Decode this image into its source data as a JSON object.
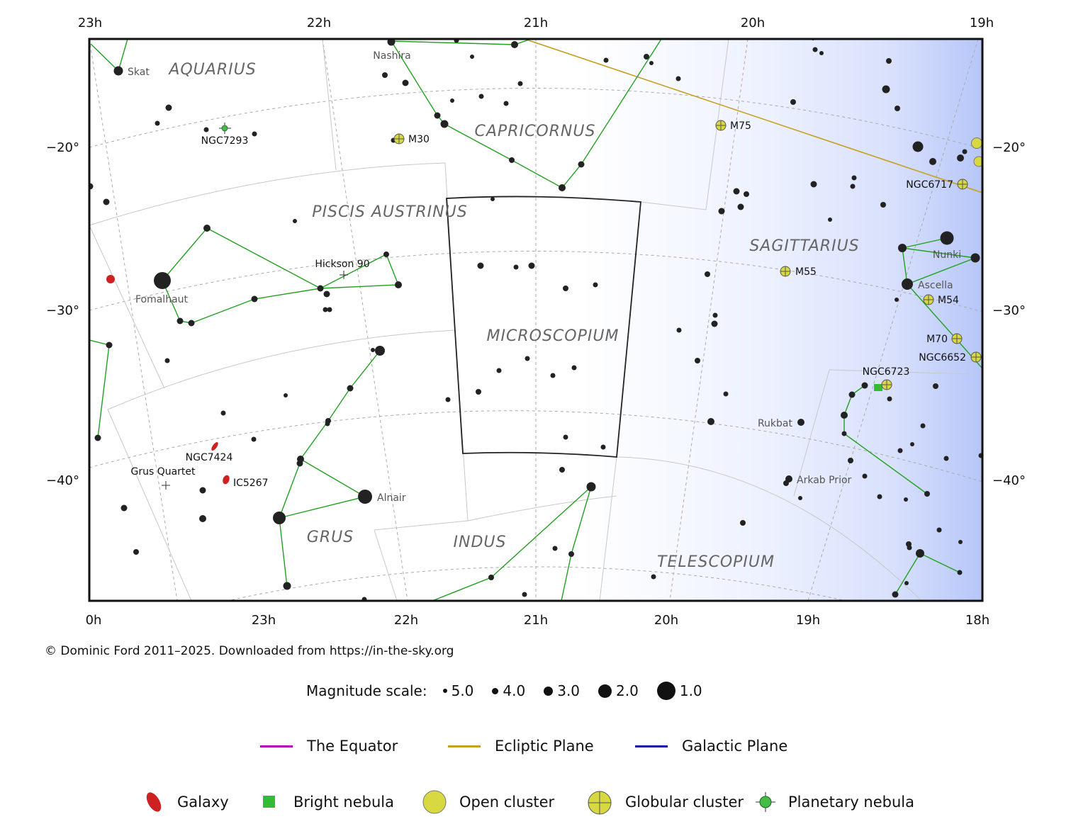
{
  "ra_top_labels": [
    "23h",
    "22h",
    "21h",
    "20h",
    "19h"
  ],
  "ra_bottom_labels": [
    "0h",
    "23h",
    "22h",
    "21h",
    "20h",
    "19h",
    "18h"
  ],
  "dec_labels": [
    "−20°",
    "−30°",
    "−40°"
  ],
  "constellations": [
    "AQUARIUS",
    "CAPRICORNUS",
    "PISCIS AUSTRINUS",
    "SAGITTARIUS",
    "MICROSCOPIUM",
    "GRUS",
    "INDUS",
    "TELESCOPIUM"
  ],
  "star_names": [
    "Skat",
    "Nashira",
    "Fomalhaut",
    "Nunki",
    "Ascella",
    "Rukbat",
    "Arkab Prior",
    "Alnair"
  ],
  "deep_sky": {
    "globular": [
      "M30",
      "M75",
      "M55",
      "M54",
      "M70",
      "NGC6652",
      "NGC6717",
      "NGC6723"
    ],
    "planetary": [
      "NGC7293"
    ],
    "galaxies": [
      "NGC7424",
      "IC5267"
    ],
    "groups": [
      "Hickson 90",
      "Grus Quartet"
    ]
  },
  "copyright": "© Dominic Ford 2011–2025. Downloaded from https://in-the-sky.org",
  "magnitude_scale": {
    "title": "Magnitude scale:",
    "items": [
      "5.0",
      "4.0",
      "3.0",
      "2.0",
      "1.0"
    ]
  },
  "line_legend": [
    {
      "label": "The Equator",
      "color": "#b000b0"
    },
    {
      "label": "Ecliptic Plane",
      "color": "#c8a020"
    },
    {
      "label": "Galactic Plane",
      "color": "#1010a0"
    }
  ],
  "object_legend": [
    "Galaxy",
    "Bright nebula",
    "Open cluster",
    "Globular cluster",
    "Planetary nebula"
  ],
  "colors": {
    "constellation_line": "#22a022",
    "ecliptic": "#c8a020",
    "galaxy": "#cc2222",
    "cluster": "#d8d840",
    "nebula": "#33bb33",
    "highlight_boundary": "#222222"
  }
}
